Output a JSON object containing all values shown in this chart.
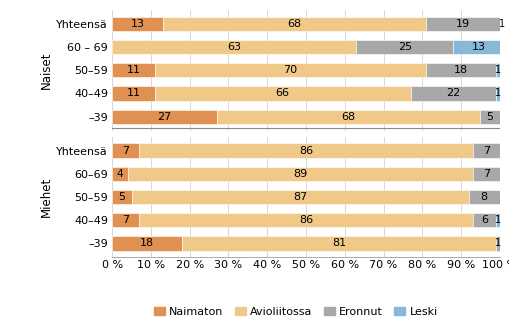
{
  "naiset_cats": [
    "Yhteensä",
    "60 – 69",
    "50–59",
    "40–49",
    "–39"
  ],
  "miehet_cats": [
    "Yhteensä",
    "60–69",
    "50–59",
    "40–49",
    "–39"
  ],
  "naiset_data": [
    [
      13,
      68,
      19,
      1
    ],
    [
      0,
      63,
      25,
      13
    ],
    [
      11,
      70,
      18,
      1
    ],
    [
      11,
      66,
      22,
      1
    ],
    [
      27,
      68,
      5,
      0
    ]
  ],
  "miehet_data": [
    [
      7,
      86,
      7,
      0
    ],
    [
      4,
      89,
      7,
      0
    ],
    [
      5,
      87,
      8,
      0
    ],
    [
      7,
      86,
      6,
      1
    ],
    [
      18,
      81,
      1,
      0
    ]
  ],
  "colors": [
    "#E09050",
    "#F0C888",
    "#A8A8A8",
    "#88B8D8"
  ],
  "legend_labels": [
    "Naimaton",
    "Avioliitossa",
    "Eronnut",
    "Leski"
  ],
  "background_color": "#FFFFFF",
  "fontsize": 8,
  "bar_height": 0.62
}
